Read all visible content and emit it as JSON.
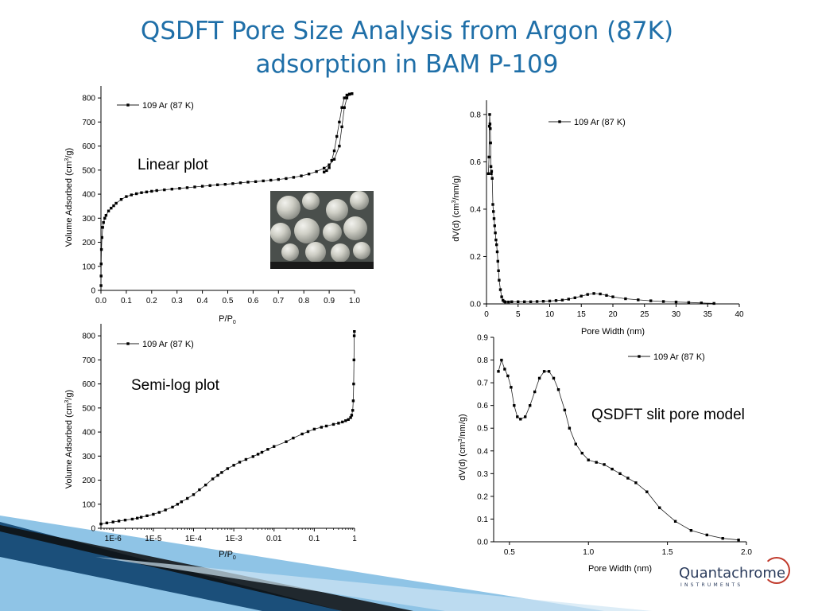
{
  "title_line1": "QSDFT Pore Size Analysis from Argon (87K)",
  "title_line2": "adsorption in BAM P-109",
  "annotations": {
    "linear": "Linear plot",
    "semilog": "Semi-log plot",
    "model": "QSDFT slit pore model"
  },
  "logo": {
    "name": "Quantachrome",
    "sub": "INSTRUMENTS"
  },
  "colors": {
    "title": "#1f6fa8",
    "deco_dark": "#1b4f7a",
    "deco_light": "#6ab0de",
    "logo_ring": "#c0392b"
  },
  "chart_data": [
    {
      "type": "scatter",
      "id": "linear",
      "xlabel": "P/P",
      "xlabel_sub": "0",
      "ylabel": "Volume Adsorbed (cm",
      "ylabel_sup": "3",
      "ylabel_end": "/g)",
      "xlim": [
        0,
        1.0
      ],
      "ylim": [
        0,
        850
      ],
      "xticks": [
        "0.0",
        "0.1",
        "0.2",
        "0.3",
        "0.4",
        "0.5",
        "0.6",
        "0.7",
        "0.8",
        "0.9",
        "1.0"
      ],
      "yticks": [
        "0",
        "100",
        "200",
        "300",
        "400",
        "500",
        "600",
        "700",
        "800"
      ],
      "legend": "109 Ar (87 K)",
      "series": [
        {
          "name": "adsorption",
          "x": [
            0.0002,
            0.0005,
            0.001,
            0.002,
            0.004,
            0.007,
            0.01,
            0.015,
            0.02,
            0.03,
            0.04,
            0.05,
            0.06,
            0.08,
            0.1,
            0.12,
            0.14,
            0.16,
            0.18,
            0.2,
            0.22,
            0.25,
            0.28,
            0.31,
            0.34,
            0.37,
            0.4,
            0.43,
            0.46,
            0.49,
            0.52,
            0.55,
            0.58,
            0.61,
            0.64,
            0.67,
            0.7,
            0.73,
            0.76,
            0.79,
            0.82,
            0.85,
            0.88,
            0.9,
            0.92,
            0.94,
            0.95,
            0.96,
            0.97,
            0.98,
            0.99
          ],
          "y": [
            20,
            60,
            110,
            170,
            220,
            262,
            282,
            300,
            312,
            330,
            342,
            352,
            362,
            378,
            390,
            397,
            402,
            406,
            409,
            412,
            415,
            418,
            421,
            424,
            427,
            430,
            433,
            436,
            439,
            441,
            444,
            447,
            450,
            452,
            455,
            458,
            461,
            465,
            470,
            476,
            484,
            494,
            508,
            522,
            545,
            600,
            680,
            760,
            800,
            815,
            818
          ]
        },
        {
          "name": "desorption",
          "x": [
            0.99,
            0.98,
            0.97,
            0.96,
            0.95,
            0.94,
            0.93,
            0.92,
            0.91,
            0.9,
            0.89,
            0.88
          ],
          "y": [
            818,
            816,
            812,
            800,
            760,
            700,
            640,
            580,
            540,
            510,
            498,
            492
          ]
        }
      ]
    },
    {
      "type": "scatter",
      "id": "psd-wide",
      "xlabel": "Pore Width (nm)",
      "ylabel": "dV(d) (cm",
      "ylabel_sup": "3",
      "ylabel_end": "/nm/g)",
      "xlim": [
        0,
        40
      ],
      "ylim": [
        0,
        0.86
      ],
      "xticks": [
        "0",
        "5",
        "10",
        "15",
        "20",
        "25",
        "30",
        "35",
        "40"
      ],
      "yticks": [
        "0.0",
        "0.2",
        "0.4",
        "0.6",
        "0.8"
      ],
      "legend": "109 Ar (87 K)",
      "series": [
        {
          "name": "psd",
          "x": [
            0.3,
            0.4,
            0.45,
            0.5,
            0.55,
            0.6,
            0.65,
            0.7,
            0.75,
            0.8,
            0.9,
            1.0,
            1.1,
            1.2,
            1.3,
            1.4,
            1.5,
            1.6,
            1.7,
            1.8,
            1.9,
            2.0,
            2.2,
            2.4,
            2.6,
            2.8,
            3.0,
            3.5,
            4,
            5,
            6,
            7,
            8,
            9,
            10,
            11,
            12,
            13,
            14,
            15,
            16,
            17,
            18,
            19,
            20,
            22,
            24,
            26,
            28,
            30,
            32,
            34,
            36
          ],
          "y": [
            0.55,
            0.62,
            0.75,
            0.8,
            0.76,
            0.74,
            0.68,
            0.58,
            0.55,
            0.56,
            0.53,
            0.42,
            0.39,
            0.36,
            0.33,
            0.3,
            0.27,
            0.25,
            0.22,
            0.18,
            0.14,
            0.1,
            0.06,
            0.03,
            0.015,
            0.01,
            0.008,
            0.008,
            0.009,
            0.009,
            0.009,
            0.009,
            0.01,
            0.011,
            0.012,
            0.014,
            0.016,
            0.02,
            0.026,
            0.033,
            0.04,
            0.044,
            0.042,
            0.036,
            0.03,
            0.022,
            0.017,
            0.013,
            0.01,
            0.008,
            0.006,
            0.004,
            0.002
          ]
        }
      ]
    },
    {
      "type": "scatter",
      "id": "semilog",
      "xlabel": "P/P",
      "xlabel_sub": "0",
      "ylabel": "Volume Adsorbed (cm",
      "ylabel_sup": "3",
      "ylabel_end": "/g)",
      "xscale": "log",
      "xlim": [
        5e-07,
        1.0
      ],
      "ylim": [
        0,
        850
      ],
      "xtick_values": [
        1e-06,
        1e-05,
        0.0001,
        0.001,
        0.01,
        0.1,
        1
      ],
      "xticks": [
        "1E-6",
        "1E-5",
        "1E-4",
        "1E-3",
        "0.01",
        "0.1",
        "1"
      ],
      "yticks": [
        "0",
        "100",
        "200",
        "300",
        "400",
        "500",
        "600",
        "700",
        "800"
      ],
      "legend": "109 Ar (87 K)",
      "series": [
        {
          "name": "adsorption",
          "x": [
            5e-07,
            7e-07,
            1e-06,
            1.4e-06,
            2e-06,
            3e-06,
            4e-06,
            5e-06,
            7e-06,
            1e-05,
            1.4e-05,
            2e-05,
            3e-05,
            4e-05,
            5e-05,
            7e-05,
            0.0001,
            0.00014,
            0.0002,
            0.0003,
            0.0004,
            0.0005,
            0.0007,
            0.001,
            0.0014,
            0.002,
            0.003,
            0.004,
            0.005,
            0.007,
            0.01,
            0.02,
            0.03,
            0.05,
            0.07,
            0.1,
            0.15,
            0.2,
            0.3,
            0.4,
            0.5,
            0.6,
            0.7,
            0.8,
            0.85,
            0.9,
            0.93,
            0.95,
            0.97,
            0.98,
            0.99
          ],
          "y": [
            18,
            22,
            26,
            30,
            34,
            38,
            42,
            46,
            52,
            58,
            66,
            76,
            88,
            100,
            110,
            124,
            140,
            160,
            180,
            205,
            220,
            232,
            248,
            262,
            275,
            286,
            298,
            308,
            316,
            328,
            340,
            360,
            375,
            392,
            402,
            412,
            420,
            425,
            432,
            437,
            442,
            447,
            452,
            460,
            470,
            490,
            530,
            600,
            700,
            800,
            818
          ]
        }
      ]
    },
    {
      "type": "scatter",
      "id": "psd-zoom",
      "xlabel": "Pore Width (nm)",
      "ylabel": "dV(d) (cm",
      "ylabel_sup": "3",
      "ylabel_end": "/nm/g)",
      "xlim": [
        0.4,
        2.0
      ],
      "ylim": [
        0,
        0.9
      ],
      "xtick_values": [
        0.5,
        1.0,
        1.5,
        2.0
      ],
      "xticks": [
        "0.5",
        "1.0",
        "1.5",
        "2.0"
      ],
      "yticks": [
        "0.0",
        "0.1",
        "0.2",
        "0.3",
        "0.4",
        "0.5",
        "0.6",
        "0.7",
        "0.8",
        "0.9"
      ],
      "legend": "109 Ar (87 K)",
      "series": [
        {
          "name": "psd",
          "x": [
            0.43,
            0.45,
            0.47,
            0.49,
            0.51,
            0.53,
            0.55,
            0.57,
            0.6,
            0.63,
            0.66,
            0.69,
            0.72,
            0.75,
            0.78,
            0.81,
            0.85,
            0.88,
            0.92,
            0.96,
            1.0,
            1.05,
            1.1,
            1.15,
            1.2,
            1.25,
            1.3,
            1.37,
            1.45,
            1.55,
            1.65,
            1.75,
            1.85,
            1.95
          ],
          "y": [
            0.75,
            0.8,
            0.76,
            0.73,
            0.68,
            0.6,
            0.55,
            0.54,
            0.55,
            0.6,
            0.66,
            0.72,
            0.75,
            0.75,
            0.72,
            0.67,
            0.58,
            0.5,
            0.43,
            0.39,
            0.36,
            0.35,
            0.34,
            0.32,
            0.3,
            0.28,
            0.26,
            0.22,
            0.15,
            0.09,
            0.05,
            0.03,
            0.015,
            0.008
          ]
        }
      ]
    }
  ]
}
